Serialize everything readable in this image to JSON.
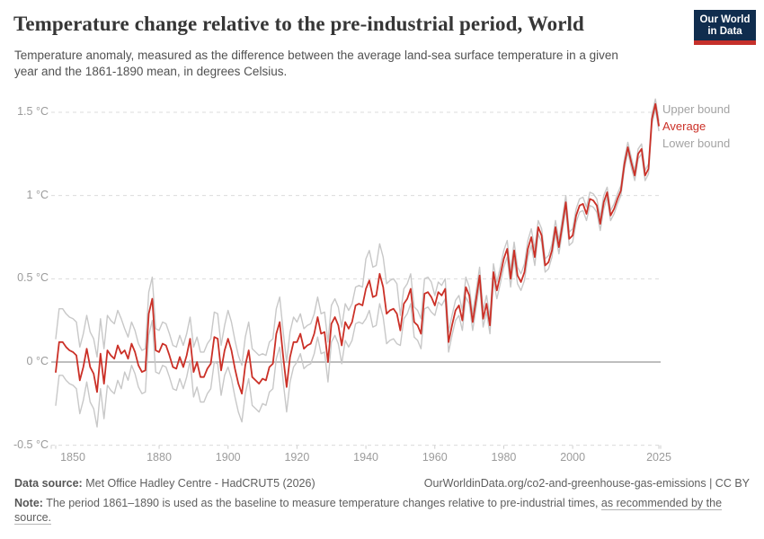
{
  "header": {
    "title": "Temperature change relative to the pre-industrial period, World",
    "subtitle_line1": "Temperature anomaly, measured as the difference between the average land-sea surface temperature in a given",
    "subtitle_line2": "year and the 1861-1890 mean, in degrees Celsius.",
    "logo_line1": "Our World",
    "logo_line2": "in Data"
  },
  "legend": {
    "upper": "Upper bound",
    "average": "Average",
    "lower": "Lower bound"
  },
  "footer": {
    "datasource_label": "Data source:",
    "datasource_text": " Met Office Hadley Centre - HadCRUT5 (2026)",
    "attribution": "OurWorldinData.org/co2-and-greenhouse-gas-emissions | CC BY",
    "note_label": "Note:",
    "note_body": " The period 1861–1890 is used as the baseline to measure temperature changes relative to pre-industrial times, ",
    "note_link_line1": "as recommended by the",
    "note_link_line2": "source."
  },
  "colors": {
    "average": "#CB3027",
    "bounds": "#C8C8C8",
    "legend_bounds_text": "#A3A3A3",
    "grid": "#DCDCDC",
    "zero_line": "#A9A9A9",
    "axis_line": "#CFCFCF",
    "tick_label": "#9B9B9B",
    "logo_bg": "#102D4E",
    "logo_accent": "#C5302B"
  },
  "chart_data": {
    "type": "line",
    "title": "Temperature change relative to the pre-industrial period, World",
    "xlabel": "",
    "ylabel": "°C",
    "xlim": [
      1850,
      2025
    ],
    "ylim": [
      -0.5,
      1.5
    ],
    "grid": "horizontal-dashed",
    "legend_position": "right-of-plot",
    "xticks": [
      1850,
      1880,
      1900,
      1920,
      1940,
      1960,
      1980,
      2000,
      2025
    ],
    "yticks": [
      {
        "value": 1.5,
        "label": "1.5 °C"
      },
      {
        "value": 1.0,
        "label": "1 °C"
      },
      {
        "value": 0.5,
        "label": "0.5 °C"
      },
      {
        "value": 0.0,
        "label": "0 °C"
      },
      {
        "value": -0.5,
        "label": "-0.5 °C"
      }
    ],
    "x": [
      1850,
      1851,
      1852,
      1853,
      1854,
      1855,
      1856,
      1857,
      1858,
      1859,
      1860,
      1861,
      1862,
      1863,
      1864,
      1865,
      1866,
      1867,
      1868,
      1869,
      1870,
      1871,
      1872,
      1873,
      1874,
      1875,
      1876,
      1877,
      1878,
      1879,
      1880,
      1881,
      1882,
      1883,
      1884,
      1885,
      1886,
      1887,
      1888,
      1889,
      1890,
      1891,
      1892,
      1893,
      1894,
      1895,
      1896,
      1897,
      1898,
      1899,
      1900,
      1901,
      1902,
      1903,
      1904,
      1905,
      1906,
      1907,
      1908,
      1909,
      1910,
      1911,
      1912,
      1913,
      1914,
      1915,
      1916,
      1917,
      1918,
      1919,
      1920,
      1921,
      1922,
      1923,
      1924,
      1925,
      1926,
      1927,
      1928,
      1929,
      1930,
      1931,
      1932,
      1933,
      1934,
      1935,
      1936,
      1937,
      1938,
      1939,
      1940,
      1941,
      1942,
      1943,
      1944,
      1945,
      1946,
      1947,
      1948,
      1949,
      1950,
      1951,
      1952,
      1953,
      1954,
      1955,
      1956,
      1957,
      1958,
      1959,
      1960,
      1961,
      1962,
      1963,
      1964,
      1965,
      1966,
      1967,
      1968,
      1969,
      1970,
      1971,
      1972,
      1973,
      1974,
      1975,
      1976,
      1977,
      1978,
      1979,
      1980,
      1981,
      1982,
      1983,
      1984,
      1985,
      1986,
      1987,
      1988,
      1989,
      1990,
      1991,
      1992,
      1993,
      1994,
      1995,
      1996,
      1997,
      1998,
      1999,
      2000,
      2001,
      2002,
      2003,
      2004,
      2005,
      2006,
      2007,
      2008,
      2009,
      2010,
      2011,
      2012,
      2013,
      2014,
      2015,
      2016,
      2017,
      2018,
      2019,
      2020,
      2021,
      2022,
      2023,
      2024,
      2025
    ],
    "series": [
      {
        "name": "Upper bound",
        "color": "#C8C8C8",
        "width": 1.4,
        "values": [
          0.14,
          0.32,
          0.32,
          0.29,
          0.27,
          0.26,
          0.24,
          0.09,
          0.17,
          0.28,
          0.18,
          0.14,
          0.03,
          0.26,
          0.08,
          0.28,
          0.25,
          0.23,
          0.31,
          0.26,
          0.2,
          0.15,
          0.24,
          0.19,
          0.11,
          0.07,
          0.08,
          0.42,
          0.51,
          0.2,
          0.19,
          0.24,
          0.23,
          0.17,
          0.1,
          0.09,
          0.16,
          0.1,
          0.17,
          0.27,
          0.09,
          0.15,
          0.06,
          0.06,
          0.11,
          0.14,
          0.3,
          0.29,
          0.1,
          0.22,
          0.31,
          0.24,
          0.13,
          0.04,
          -0.02,
          0.15,
          0.24,
          0.08,
          0.06,
          0.04,
          0.05,
          0.04,
          0.12,
          0.14,
          0.32,
          0.39,
          0.18,
          0.0,
          0.18,
          0.27,
          0.24,
          0.29,
          0.2,
          0.22,
          0.23,
          0.29,
          0.39,
          0.29,
          0.3,
          0.12,
          0.34,
          0.38,
          0.33,
          0.21,
          0.35,
          0.31,
          0.35,
          0.45,
          0.46,
          0.45,
          0.62,
          0.67,
          0.57,
          0.58,
          0.71,
          0.63,
          0.47,
          0.49,
          0.5,
          0.47,
          0.28,
          0.44,
          0.47,
          0.53,
          0.33,
          0.31,
          0.26,
          0.5,
          0.51,
          0.48,
          0.4,
          0.48,
          0.46,
          0.5,
          0.18,
          0.28,
          0.37,
          0.4,
          0.31,
          0.51,
          0.45,
          0.29,
          0.43,
          0.57,
          0.31,
          0.4,
          0.27,
          0.59,
          0.48,
          0.57,
          0.67,
          0.73,
          0.55,
          0.72,
          0.57,
          0.53,
          0.59,
          0.73,
          0.8,
          0.68,
          0.85,
          0.8,
          0.62,
          0.64,
          0.71,
          0.85,
          0.73,
          0.86,
          1.0,
          0.78,
          0.8,
          0.92,
          0.98,
          0.99,
          0.93,
          1.02,
          1.01,
          0.98,
          0.87,
          1.0,
          1.05,
          0.91,
          0.95,
          1.01,
          1.06,
          1.22,
          1.32,
          1.23,
          1.15,
          1.28,
          1.31,
          1.15,
          1.19,
          1.49,
          1.58,
          1.45
        ]
      },
      {
        "name": "Average",
        "color": "#CB3027",
        "width": 1.8,
        "values": [
          -0.06,
          0.12,
          0.12,
          0.09,
          0.07,
          0.06,
          0.04,
          -0.11,
          -0.03,
          0.08,
          -0.03,
          -0.07,
          -0.18,
          0.05,
          -0.13,
          0.07,
          0.04,
          0.02,
          0.1,
          0.05,
          0.07,
          0.02,
          0.11,
          0.06,
          -0.02,
          -0.06,
          -0.05,
          0.29,
          0.38,
          0.07,
          0.06,
          0.11,
          0.1,
          0.04,
          -0.03,
          -0.04,
          0.03,
          -0.03,
          0.04,
          0.14,
          -0.06,
          0.0,
          -0.09,
          -0.09,
          -0.04,
          -0.01,
          0.15,
          0.14,
          -0.05,
          0.07,
          0.14,
          0.07,
          -0.04,
          -0.13,
          -0.19,
          -0.02,
          0.07,
          -0.09,
          -0.11,
          -0.13,
          -0.1,
          -0.11,
          -0.03,
          -0.01,
          0.17,
          0.24,
          0.03,
          -0.15,
          0.03,
          0.12,
          0.12,
          0.17,
          0.08,
          0.1,
          0.11,
          0.17,
          0.27,
          0.17,
          0.18,
          0.0,
          0.23,
          0.27,
          0.22,
          0.1,
          0.24,
          0.2,
          0.24,
          0.34,
          0.35,
          0.34,
          0.44,
          0.49,
          0.39,
          0.4,
          0.53,
          0.45,
          0.29,
          0.31,
          0.32,
          0.29,
          0.19,
          0.35,
          0.38,
          0.44,
          0.24,
          0.22,
          0.17,
          0.41,
          0.42,
          0.39,
          0.34,
          0.42,
          0.4,
          0.44,
          0.12,
          0.22,
          0.31,
          0.34,
          0.25,
          0.45,
          0.4,
          0.24,
          0.38,
          0.52,
          0.26,
          0.35,
          0.22,
          0.54,
          0.43,
          0.52,
          0.62,
          0.68,
          0.5,
          0.67,
          0.52,
          0.48,
          0.54,
          0.68,
          0.75,
          0.63,
          0.81,
          0.76,
          0.58,
          0.6,
          0.67,
          0.81,
          0.69,
          0.82,
          0.96,
          0.74,
          0.76,
          0.88,
          0.94,
          0.95,
          0.89,
          0.98,
          0.97,
          0.94,
          0.83,
          0.96,
          1.02,
          0.88,
          0.92,
          0.98,
          1.03,
          1.19,
          1.29,
          1.2,
          1.12,
          1.25,
          1.28,
          1.12,
          1.16,
          1.46,
          1.55,
          1.42
        ]
      },
      {
        "name": "Lower bound",
        "color": "#C8C8C8",
        "width": 1.4,
        "values": [
          -0.26,
          -0.08,
          -0.08,
          -0.11,
          -0.13,
          -0.14,
          -0.16,
          -0.31,
          -0.23,
          -0.12,
          -0.24,
          -0.28,
          -0.39,
          -0.16,
          -0.34,
          -0.14,
          -0.17,
          -0.19,
          -0.11,
          -0.16,
          -0.06,
          -0.11,
          -0.02,
          -0.07,
          -0.15,
          -0.19,
          -0.18,
          0.16,
          0.25,
          -0.06,
          -0.07,
          -0.02,
          -0.03,
          -0.09,
          -0.16,
          -0.17,
          -0.1,
          -0.16,
          -0.09,
          0.01,
          -0.21,
          -0.15,
          -0.24,
          -0.24,
          -0.19,
          -0.16,
          0.0,
          -0.01,
          -0.2,
          -0.08,
          -0.03,
          -0.1,
          -0.21,
          -0.3,
          -0.36,
          -0.19,
          -0.1,
          -0.26,
          -0.28,
          -0.3,
          -0.25,
          -0.26,
          -0.18,
          -0.16,
          0.02,
          0.09,
          -0.12,
          -0.3,
          -0.12,
          -0.03,
          0.0,
          0.05,
          -0.04,
          -0.02,
          -0.01,
          0.05,
          0.15,
          0.05,
          0.06,
          -0.12,
          0.12,
          0.16,
          0.11,
          -0.01,
          0.13,
          0.09,
          0.13,
          0.23,
          0.24,
          0.23,
          0.26,
          0.31,
          0.21,
          0.22,
          0.35,
          0.27,
          0.11,
          0.13,
          0.14,
          0.11,
          0.1,
          0.26,
          0.29,
          0.35,
          0.15,
          0.13,
          0.08,
          0.32,
          0.33,
          0.3,
          0.28,
          0.36,
          0.34,
          0.38,
          0.06,
          0.16,
          0.25,
          0.28,
          0.19,
          0.39,
          0.35,
          0.19,
          0.33,
          0.47,
          0.21,
          0.3,
          0.17,
          0.49,
          0.38,
          0.47,
          0.57,
          0.63,
          0.45,
          0.62,
          0.47,
          0.43,
          0.49,
          0.63,
          0.7,
          0.58,
          0.77,
          0.72,
          0.54,
          0.56,
          0.63,
          0.77,
          0.65,
          0.78,
          0.92,
          0.7,
          0.72,
          0.84,
          0.9,
          0.91,
          0.85,
          0.94,
          0.93,
          0.9,
          0.79,
          0.92,
          0.99,
          0.85,
          0.89,
          0.95,
          1.0,
          1.16,
          1.26,
          1.17,
          1.09,
          1.22,
          1.25,
          1.09,
          1.13,
          1.43,
          1.52,
          1.39
        ]
      }
    ]
  }
}
